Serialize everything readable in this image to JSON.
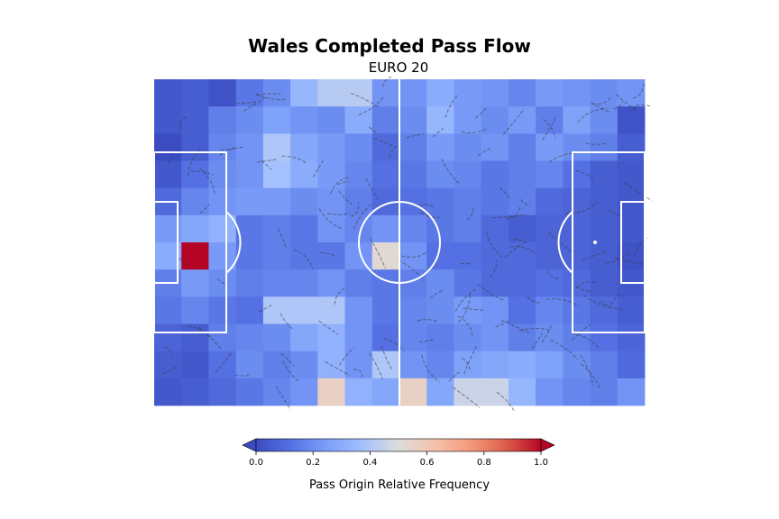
{
  "chart_data": {
    "type": "heatmap",
    "title": "Wales Completed Pass Flow",
    "subtitle": "EURO 20",
    "colorbar": {
      "label": "Pass Origin Relative Frequency",
      "ticks": [
        "0.0",
        "0.2",
        "0.4",
        "0.6",
        "0.8",
        "1.0"
      ],
      "range": [
        0,
        1
      ],
      "colormap": "coolwarm",
      "extend": "both"
    },
    "grid": {
      "cols": 18,
      "rows": 12
    },
    "values": [
      [
        0.04,
        0.06,
        0.02,
        0.14,
        0.2,
        0.34,
        0.42,
        0.42,
        0.22,
        0.22,
        0.3,
        0.24,
        0.22,
        0.18,
        0.24,
        0.22,
        0.2,
        0.22
      ],
      [
        0.04,
        0.06,
        0.16,
        0.2,
        0.26,
        0.22,
        0.2,
        0.3,
        0.16,
        0.2,
        0.34,
        0.24,
        0.2,
        0.24,
        0.16,
        0.26,
        0.2,
        0.02
      ],
      [
        0.0,
        0.06,
        0.18,
        0.22,
        0.4,
        0.28,
        0.24,
        0.2,
        0.1,
        0.16,
        0.24,
        0.2,
        0.22,
        0.16,
        0.24,
        0.2,
        0.16,
        0.06
      ],
      [
        0.04,
        0.12,
        0.2,
        0.22,
        0.38,
        0.3,
        0.24,
        0.18,
        0.12,
        0.14,
        0.2,
        0.18,
        0.14,
        0.16,
        0.18,
        0.12,
        0.06,
        0.04
      ],
      [
        0.1,
        0.18,
        0.22,
        0.24,
        0.24,
        0.2,
        0.22,
        0.16,
        0.1,
        0.12,
        0.14,
        0.16,
        0.14,
        0.16,
        0.1,
        0.08,
        0.06,
        0.04
      ],
      [
        0.24,
        0.28,
        0.32,
        0.14,
        0.16,
        0.14,
        0.22,
        0.18,
        0.22,
        0.18,
        0.14,
        0.16,
        0.1,
        0.06,
        0.08,
        0.08,
        0.06,
        0.04
      ],
      [
        0.3,
        1.0,
        0.24,
        0.14,
        0.16,
        0.14,
        0.14,
        0.22,
        0.52,
        0.22,
        0.12,
        0.12,
        0.1,
        0.1,
        0.08,
        0.08,
        0.06,
        0.02
      ],
      [
        0.16,
        0.24,
        0.2,
        0.16,
        0.18,
        0.18,
        0.22,
        0.16,
        0.14,
        0.16,
        0.2,
        0.14,
        0.1,
        0.1,
        0.12,
        0.1,
        0.06,
        0.04
      ],
      [
        0.14,
        0.18,
        0.14,
        0.12,
        0.4,
        0.4,
        0.4,
        0.22,
        0.14,
        0.18,
        0.2,
        0.24,
        0.22,
        0.12,
        0.18,
        0.14,
        0.1,
        0.06
      ],
      [
        0.08,
        0.06,
        0.16,
        0.18,
        0.2,
        0.28,
        0.32,
        0.22,
        0.12,
        0.18,
        0.16,
        0.2,
        0.22,
        0.16,
        0.2,
        0.16,
        0.12,
        0.08
      ],
      [
        0.06,
        0.04,
        0.12,
        0.2,
        0.16,
        0.2,
        0.32,
        0.22,
        0.4,
        0.22,
        0.18,
        0.26,
        0.28,
        0.3,
        0.26,
        0.2,
        0.16,
        0.1
      ],
      [
        0.04,
        0.06,
        0.1,
        0.14,
        0.18,
        0.22,
        0.56,
        0.32,
        0.28,
        0.56,
        0.28,
        0.46,
        0.46,
        0.34,
        0.22,
        0.18,
        0.16,
        0.22
      ]
    ]
  }
}
